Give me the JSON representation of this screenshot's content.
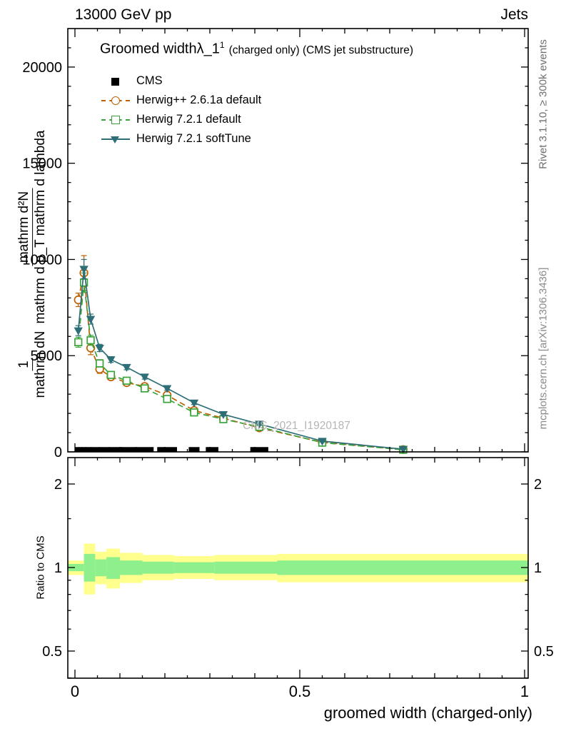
{
  "header": {
    "left": "13000 GeV pp",
    "right": "Jets"
  },
  "titles": {
    "main": "Groomed width",
    "symbol": "λ_1",
    "sup": "1",
    "note": "(charged only) (CMS jet substructure)"
  },
  "legend": {
    "items": [
      {
        "label": "CMS",
        "marker": "square-filled"
      },
      {
        "label": "Herwig++ 2.6.1a default",
        "marker": "circle-open-dashed"
      },
      {
        "label": "Herwig 7.2.1 default",
        "marker": "square-open-dashed"
      },
      {
        "label": "Herwig 7.2.1 softTune",
        "marker": "triangle-down-solid"
      }
    ]
  },
  "side_labels": {
    "top_right": "Rivet 3.1.10, ≥ 300k events",
    "bottom_right": "mcplots.cern.ch [arXiv:1306.3436]"
  },
  "watermark": "CMS_2021_I1920187",
  "y_axis_label": {
    "pre_num": "1",
    "pre_den": "mathrm dN",
    "num": "mathrm d²N",
    "den": "mathrm d p_T mathrm d lambda"
  },
  "ratio_label": "Ratio to CMS",
  "x_axis_title": "groomed width (charged-only)",
  "chart_data": {
    "type": "line",
    "title": "Groomed width λ_1^1 (charged only) (CMS jet substructure)",
    "xlabel": "groomed width (charged-only)",
    "ylabel": "1/mathrm dN · mathrm d²N / mathrm d p_T mathrm d lambda",
    "xlim": [
      0,
      1
    ],
    "ylim": [
      0,
      22000
    ],
    "grid": false,
    "legend_position": "top-left",
    "x_major_ticks": [
      0,
      0.5,
      1
    ],
    "y_major_ticks": [
      0,
      5000,
      10000,
      15000,
      20000
    ],
    "x": [
      0.0075,
      0.02,
      0.035,
      0.055,
      0.08,
      0.115,
      0.155,
      0.205,
      0.265,
      0.33,
      0.41,
      0.55,
      0.73
    ],
    "series": [
      {
        "name": "CMS",
        "type": "scatter",
        "marker": "square-filled",
        "color": "#000000",
        "x": [
          0.005,
          0.0125,
          0.02,
          0.03,
          0.045,
          0.065,
          0.09,
          0.12,
          0.155,
          0.205,
          0.265,
          0.305,
          0.41
        ],
        "y": [
          120,
          120,
          120,
          120,
          120,
          120,
          120,
          120,
          120,
          120,
          120,
          120,
          120
        ],
        "bin_halfwidth": [
          0.004,
          0.004,
          0.005,
          0.0075,
          0.01,
          0.012,
          0.015,
          0.018,
          0.02,
          0.022,
          0.012,
          0.014,
          0.02
        ]
      },
      {
        "name": "Herwig++ 2.6.1a default",
        "type": "line",
        "line_style": "dashed",
        "marker": "circle-open",
        "color": "#bf6000",
        "y": [
          7900,
          9300,
          5400,
          4300,
          3900,
          3600,
          3400,
          2950,
          2150,
          1750,
          1250,
          500,
          120
        ],
        "yerr": [
          350,
          900,
          350,
          220,
          170,
          160,
          150,
          130,
          110,
          100,
          90,
          60,
          35
        ]
      },
      {
        "name": "Herwig 7.2.1 default",
        "type": "line",
        "line_style": "dashed",
        "marker": "square-open",
        "color": "#3aa33a",
        "y": [
          5700,
          8800,
          5800,
          4600,
          4000,
          3700,
          3300,
          2750,
          2050,
          1700,
          1300,
          480,
          110
        ],
        "yerr": [
          260,
          500,
          260,
          190,
          140,
          130,
          120,
          100,
          90,
          80,
          70,
          45,
          25
        ]
      },
      {
        "name": "Herwig 7.2.1 softTune",
        "type": "line",
        "line_style": "solid",
        "marker": "triangle-down-filled",
        "color": "#2e6f77",
        "y": [
          6300,
          9500,
          6900,
          5400,
          4800,
          4400,
          3900,
          3300,
          2550,
          1950,
          1450,
          560,
          140
        ],
        "yerr": [
          260,
          500,
          260,
          190,
          150,
          130,
          120,
          100,
          90,
          80,
          70,
          45,
          25
        ]
      }
    ],
    "ratio_panel": {
      "ylabel": "Ratio to CMS",
      "scale": "log",
      "ylim": [
        0.4,
        2.5
      ],
      "y_major_ticks": [
        0.5,
        1,
        2
      ],
      "y_minor_ticks": [
        0.4,
        0.6,
        0.7,
        0.8,
        0.9,
        1.5
      ],
      "band_colors": {
        "outer": "#ffff8e",
        "inner": "#8df08d"
      },
      "band_segments": [
        {
          "x0": 0.0,
          "x1": 0.02,
          "outer": [
            0.94,
            1.06
          ],
          "inner": [
            0.97,
            1.03
          ]
        },
        {
          "x0": 0.02,
          "x1": 0.045,
          "outer": [
            0.8,
            1.22
          ],
          "inner": [
            0.89,
            1.12
          ]
        },
        {
          "x0": 0.045,
          "x1": 0.07,
          "outer": [
            0.87,
            1.14
          ],
          "inner": [
            0.93,
            1.07
          ]
        },
        {
          "x0": 0.07,
          "x1": 0.1,
          "outer": [
            0.84,
            1.17
          ],
          "inner": [
            0.91,
            1.09
          ]
        },
        {
          "x0": 0.1,
          "x1": 0.15,
          "outer": [
            0.88,
            1.13
          ],
          "inner": [
            0.94,
            1.06
          ]
        },
        {
          "x0": 0.15,
          "x1": 0.22,
          "outer": [
            0.9,
            1.11
          ],
          "inner": [
            0.95,
            1.05
          ]
        },
        {
          "x0": 0.22,
          "x1": 0.31,
          "outer": [
            0.91,
            1.1
          ],
          "inner": [
            0.955,
            1.045
          ]
        },
        {
          "x0": 0.31,
          "x1": 0.45,
          "outer": [
            0.9,
            1.11
          ],
          "inner": [
            0.95,
            1.05
          ]
        },
        {
          "x0": 0.45,
          "x1": 1.0,
          "outer": [
            0.885,
            1.12
          ],
          "inner": [
            0.94,
            1.06
          ]
        }
      ]
    }
  }
}
